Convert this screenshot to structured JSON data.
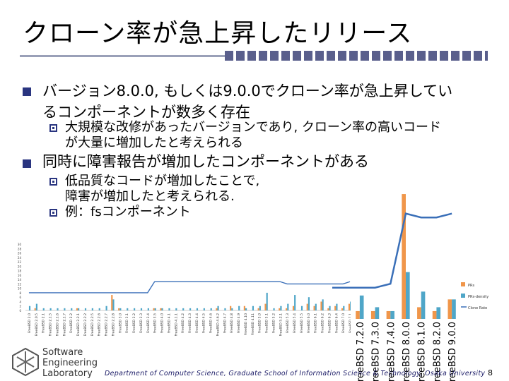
{
  "slide": {
    "title": "クローン率が急上昇したリリース",
    "bullets": [
      {
        "text_line1": "バージョン8.0.0, もしくは9.0.0でクローン率が急上昇してい",
        "text_line2": "るコンポーネントが数多く存在",
        "sub": [
          {
            "line1": "大規模な改修があったバージョンであり, クローン率の高いコード",
            "line2": "が大量に増加したと考えられる"
          }
        ]
      },
      {
        "text_line1": "同時に障害報告が増加したコンポーネントがある",
        "sub": [
          {
            "line1": "低品質なコードが増加したことで,",
            "line2": "障害が増加したと考えられる."
          },
          {
            "line1": "例：fsコンポーネント"
          }
        ]
      }
    ],
    "footer": "Department of Computer Science, Graduate School of Information Science & Technology, Osaka University",
    "page_number": "8",
    "logo": {
      "line1": "Software",
      "line2": "Engineering",
      "line3": "Laboratory"
    }
  },
  "chart_data": {
    "type": "bar",
    "series": [
      {
        "name": "PRs",
        "color": "#f0964a"
      },
      {
        "name": "PRs-density",
        "color": "#4fa6c8"
      },
      {
        "name": "Clone Rate",
        "color": "#3a6fb8"
      }
    ],
    "small_chart": {
      "ylim": [
        0,
        30
      ],
      "yticks": [
        "0",
        "2",
        "4",
        "6",
        "8",
        "10",
        "12",
        "14",
        "16",
        "18",
        "20",
        "22",
        "24",
        "26",
        "28",
        "30"
      ],
      "categories": [
        "FreeBSD 2.0",
        "FreeBSD 2.0.5",
        "FreeBSD 2.1",
        "FreeBSD 2.1.5",
        "FreeBSD 2.1.6",
        "FreeBSD 2.1.7",
        "FreeBSD 2.2",
        "FreeBSD 2.2.1",
        "FreeBSD 2.2.2",
        "FreeBSD 2.2.5",
        "FreeBSD 2.2.6",
        "FreeBSD 2.2.7",
        "FreeBSD 2.2.8",
        "FreeBSD 3.0",
        "FreeBSD 3.1",
        "FreeBSD 3.2",
        "FreeBSD 3.3",
        "FreeBSD 3.4",
        "FreeBSD 3.5",
        "FreeBSD 4.0",
        "FreeBSD 4.1",
        "FreeBSD 4.1.1",
        "FreeBSD 4.2",
        "FreeBSD 4.3",
        "FreeBSD 4.4",
        "FreeBSD 4.5",
        "FreeBSD 4.6",
        "FreeBSD 4.6.2",
        "FreeBSD 4.7",
        "FreeBSD 4.8",
        "FreeBSD 4.9",
        "FreeBSD 4.10",
        "FreeBSD 4.11",
        "FreeBSD 5.0",
        "FreeBSD 5.1",
        "FreeBSD 5.2",
        "FreeBSD 5.2.1",
        "FreeBSD 5.3",
        "FreeBSD 5.4",
        "FreeBSD 5.5",
        "FreeBSD 6.0",
        "FreeBSD 6.1",
        "FreeBSD 6.2",
        "FreeBSD 6.3",
        "FreeBSD 6.4",
        "FreeBSD 7.0",
        "FreeBSD 7.1"
      ],
      "prs": [
        0,
        1,
        0,
        0,
        0,
        0,
        0,
        1,
        0,
        0,
        0,
        0,
        7,
        1,
        0,
        0,
        0,
        0,
        1,
        1,
        0,
        0,
        0,
        0,
        0,
        0,
        0,
        1,
        0,
        2,
        0,
        2,
        0,
        1,
        3,
        0,
        1,
        1,
        2,
        0,
        3,
        2,
        4,
        1,
        2,
        1,
        3
      ],
      "density": [
        2,
        3,
        1,
        1,
        1,
        1,
        1,
        1,
        1,
        1,
        1,
        2,
        5,
        1,
        1,
        1,
        1,
        1,
        1,
        1,
        1,
        1,
        1,
        1,
        1,
        1,
        1,
        2,
        1,
        1,
        2,
        1,
        2,
        2,
        8,
        1,
        2,
        3,
        7,
        2,
        6,
        3,
        5,
        2,
        3,
        2,
        4
      ],
      "clone": [
        8,
        8,
        8,
        8,
        8,
        8,
        8,
        8,
        8,
        8,
        8,
        8,
        8,
        8,
        8,
        8,
        8,
        8,
        13,
        13,
        13,
        13,
        13,
        13,
        13,
        13,
        13,
        13,
        13,
        13,
        13,
        13,
        13,
        13,
        13,
        13,
        13,
        12,
        12,
        12,
        12,
        12,
        12,
        12,
        12,
        12,
        13
      ]
    },
    "large_chart": {
      "categories": [
        "FreeBSD 7.2.0",
        "FreeBSD 7.3.0",
        "FreeBSD 7.4.0",
        "FreeBSD 8.0.0",
        "FreeBSD 8.1.0",
        "FreeBSD 8.2.0",
        "FreeBSD 9.0.0"
      ],
      "prs": [
        2,
        2,
        2,
        32,
        3,
        2,
        5
      ],
      "density": [
        6,
        3,
        2,
        12,
        7,
        3,
        5
      ],
      "clone": [
        8,
        8,
        9,
        27,
        26,
        26,
        27
      ],
      "ylim": [
        0,
        34
      ]
    }
  }
}
